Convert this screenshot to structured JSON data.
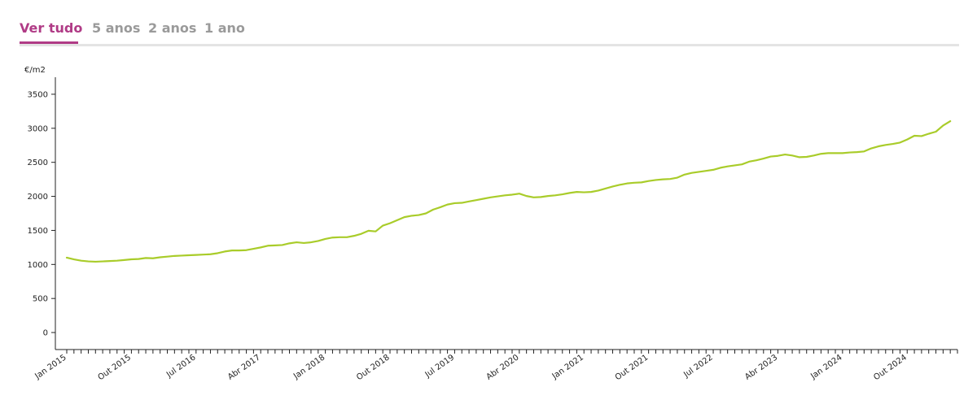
{
  "tabs": [
    {
      "label": "Ver tudo",
      "active": true
    },
    {
      "label": "5 anos",
      "active": false
    },
    {
      "label": "2 anos",
      "active": false
    },
    {
      "label": "1 ano",
      "active": false
    }
  ],
  "colors": {
    "accent": "#b03b86",
    "line": "#a9cc2a",
    "tab_inactive": "#9a9a9a"
  },
  "chart_data": {
    "type": "line",
    "ylabel": "€/m2",
    "xlabel": "",
    "ylim": [
      -250,
      3750
    ],
    "yticks": [
      0,
      500,
      1000,
      1500,
      2000,
      2500,
      3000,
      3500
    ],
    "grid": false,
    "x_tick_labels": [
      "Jan 2015",
      "Out 2015",
      "Jul 2016",
      "Abr 2017",
      "Jan 2018",
      "Out 2018",
      "Jul 2019",
      "Abr 2020",
      "Jan 2021",
      "Out 2021",
      "Jul 2022",
      "Abr 2023",
      "Jan 2024",
      "Out 2024"
    ],
    "x_start": "2015-01",
    "x_end": "2025-05",
    "series": [
      {
        "values": [
          {
            "x": "2015-01",
            "y": 1100
          },
          {
            "x": "2015-02",
            "y": 1075
          },
          {
            "x": "2015-03",
            "y": 1055
          },
          {
            "x": "2015-04",
            "y": 1045
          },
          {
            "x": "2015-05",
            "y": 1040
          },
          {
            "x": "2015-06",
            "y": 1045
          },
          {
            "x": "2015-07",
            "y": 1050
          },
          {
            "x": "2015-08",
            "y": 1055
          },
          {
            "x": "2015-09",
            "y": 1065
          },
          {
            "x": "2015-10",
            "y": 1075
          },
          {
            "x": "2015-11",
            "y": 1080
          },
          {
            "x": "2015-12",
            "y": 1095
          },
          {
            "x": "2016-01",
            "y": 1090
          },
          {
            "x": "2016-02",
            "y": 1105
          },
          {
            "x": "2016-03",
            "y": 1115
          },
          {
            "x": "2016-04",
            "y": 1125
          },
          {
            "x": "2016-05",
            "y": 1130
          },
          {
            "x": "2016-06",
            "y": 1135
          },
          {
            "x": "2016-07",
            "y": 1140
          },
          {
            "x": "2016-08",
            "y": 1145
          },
          {
            "x": "2016-09",
            "y": 1150
          },
          {
            "x": "2016-10",
            "y": 1165
          },
          {
            "x": "2016-11",
            "y": 1190
          },
          {
            "x": "2016-12",
            "y": 1205
          },
          {
            "x": "2017-01",
            "y": 1205
          },
          {
            "x": "2017-02",
            "y": 1210
          },
          {
            "x": "2017-03",
            "y": 1230
          },
          {
            "x": "2017-04",
            "y": 1250
          },
          {
            "x": "2017-05",
            "y": 1275
          },
          {
            "x": "2017-06",
            "y": 1280
          },
          {
            "x": "2017-07",
            "y": 1285
          },
          {
            "x": "2017-08",
            "y": 1310
          },
          {
            "x": "2017-09",
            "y": 1325
          },
          {
            "x": "2017-10",
            "y": 1315
          },
          {
            "x": "2017-11",
            "y": 1325
          },
          {
            "x": "2017-12",
            "y": 1345
          },
          {
            "x": "2018-01",
            "y": 1375
          },
          {
            "x": "2018-02",
            "y": 1395
          },
          {
            "x": "2018-03",
            "y": 1400
          },
          {
            "x": "2018-04",
            "y": 1400
          },
          {
            "x": "2018-05",
            "y": 1420
          },
          {
            "x": "2018-06",
            "y": 1450
          },
          {
            "x": "2018-07",
            "y": 1495
          },
          {
            "x": "2018-08",
            "y": 1485
          },
          {
            "x": "2018-09",
            "y": 1570
          },
          {
            "x": "2018-10",
            "y": 1605
          },
          {
            "x": "2018-11",
            "y": 1650
          },
          {
            "x": "2018-12",
            "y": 1695
          },
          {
            "x": "2019-01",
            "y": 1715
          },
          {
            "x": "2019-02",
            "y": 1725
          },
          {
            "x": "2019-03",
            "y": 1750
          },
          {
            "x": "2019-04",
            "y": 1805
          },
          {
            "x": "2019-05",
            "y": 1840
          },
          {
            "x": "2019-06",
            "y": 1880
          },
          {
            "x": "2019-07",
            "y": 1900
          },
          {
            "x": "2019-08",
            "y": 1905
          },
          {
            "x": "2019-09",
            "y": 1925
          },
          {
            "x": "2019-10",
            "y": 1945
          },
          {
            "x": "2019-11",
            "y": 1965
          },
          {
            "x": "2019-12",
            "y": 1985
          },
          {
            "x": "2020-01",
            "y": 2000
          },
          {
            "x": "2020-02",
            "y": 2015
          },
          {
            "x": "2020-03",
            "y": 2025
          },
          {
            "x": "2020-04",
            "y": 2040
          },
          {
            "x": "2020-05",
            "y": 2005
          },
          {
            "x": "2020-06",
            "y": 1985
          },
          {
            "x": "2020-07",
            "y": 1990
          },
          {
            "x": "2020-08",
            "y": 2005
          },
          {
            "x": "2020-09",
            "y": 2015
          },
          {
            "x": "2020-10",
            "y": 2030
          },
          {
            "x": "2020-11",
            "y": 2050
          },
          {
            "x": "2020-12",
            "y": 2065
          },
          {
            "x": "2021-01",
            "y": 2060
          },
          {
            "x": "2021-02",
            "y": 2065
          },
          {
            "x": "2021-03",
            "y": 2085
          },
          {
            "x": "2021-04",
            "y": 2115
          },
          {
            "x": "2021-05",
            "y": 2145
          },
          {
            "x": "2021-06",
            "y": 2170
          },
          {
            "x": "2021-07",
            "y": 2190
          },
          {
            "x": "2021-08",
            "y": 2200
          },
          {
            "x": "2021-09",
            "y": 2205
          },
          {
            "x": "2021-10",
            "y": 2225
          },
          {
            "x": "2021-11",
            "y": 2240
          },
          {
            "x": "2021-12",
            "y": 2250
          },
          {
            "x": "2022-01",
            "y": 2255
          },
          {
            "x": "2022-02",
            "y": 2275
          },
          {
            "x": "2022-03",
            "y": 2320
          },
          {
            "x": "2022-04",
            "y": 2345
          },
          {
            "x": "2022-05",
            "y": 2360
          },
          {
            "x": "2022-06",
            "y": 2375
          },
          {
            "x": "2022-07",
            "y": 2390
          },
          {
            "x": "2022-08",
            "y": 2420
          },
          {
            "x": "2022-09",
            "y": 2440
          },
          {
            "x": "2022-10",
            "y": 2455
          },
          {
            "x": "2022-11",
            "y": 2470
          },
          {
            "x": "2022-12",
            "y": 2510
          },
          {
            "x": "2023-01",
            "y": 2530
          },
          {
            "x": "2023-02",
            "y": 2555
          },
          {
            "x": "2023-03",
            "y": 2585
          },
          {
            "x": "2023-04",
            "y": 2595
          },
          {
            "x": "2023-05",
            "y": 2615
          },
          {
            "x": "2023-06",
            "y": 2600
          },
          {
            "x": "2023-07",
            "y": 2575
          },
          {
            "x": "2023-08",
            "y": 2580
          },
          {
            "x": "2023-09",
            "y": 2600
          },
          {
            "x": "2023-10",
            "y": 2625
          },
          {
            "x": "2023-11",
            "y": 2635
          },
          {
            "x": "2023-12",
            "y": 2635
          },
          {
            "x": "2024-01",
            "y": 2635
          },
          {
            "x": "2024-02",
            "y": 2645
          },
          {
            "x": "2024-03",
            "y": 2650
          },
          {
            "x": "2024-04",
            "y": 2660
          },
          {
            "x": "2024-05",
            "y": 2705
          },
          {
            "x": "2024-06",
            "y": 2735
          },
          {
            "x": "2024-07",
            "y": 2755
          },
          {
            "x": "2024-08",
            "y": 2770
          },
          {
            "x": "2024-09",
            "y": 2790
          },
          {
            "x": "2024-10",
            "y": 2835
          },
          {
            "x": "2024-11",
            "y": 2890
          },
          {
            "x": "2024-12",
            "y": 2885
          },
          {
            "x": "2025-01",
            "y": 2920
          },
          {
            "x": "2025-02",
            "y": 2950
          },
          {
            "x": "2025-03",
            "y": 3040
          },
          {
            "x": "2025-04",
            "y": 3105
          }
        ]
      }
    ]
  }
}
